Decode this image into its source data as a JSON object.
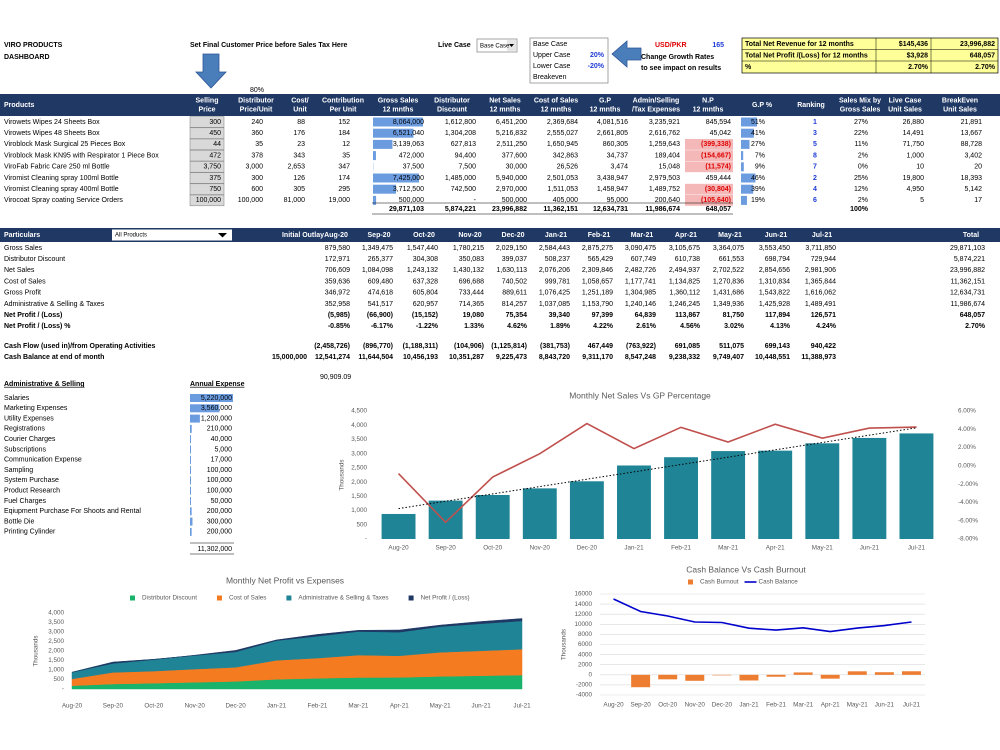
{
  "header": {
    "company": "VIRO PRODUCTS",
    "subtitle": "DASHBOARD",
    "instruction": "Set Final Customer Price before Sales Tax Here",
    "live_case_label": "Live Case",
    "live_case": "Base Case",
    "scenarios": [
      {
        "name": "Base Case"
      },
      {
        "name": "Upper Case",
        "rate": "20%"
      },
      {
        "name": "Lower Case",
        "rate": "-20%"
      },
      {
        "name": "Breakeven"
      }
    ],
    "currency_label": "USD/PKR",
    "currency_rate": 165,
    "growth_note": [
      "Change Growth Rates",
      "to see impact on results"
    ],
    "distributor_margin": "80%"
  },
  "summary": {
    "rows": [
      [
        "Total Net Revenue for 12 months",
        "$145,436",
        "23,996,882"
      ],
      [
        "Total Net Profit /(Loss) for 12 months",
        "$3,928",
        "648,057"
      ],
      [
        "%",
        "2.70%",
        "2.70%"
      ]
    ]
  },
  "products": {
    "columns": [
      [
        "Products"
      ],
      [
        "Selling",
        "Price"
      ],
      [
        "Distributor",
        "Price/Unit"
      ],
      [
        "Cost/",
        "Unit"
      ],
      [
        "Contribution",
        "Per Unit"
      ],
      [
        "Gross Sales",
        "12 mnths"
      ],
      [
        "Distributor",
        "Discount"
      ],
      [
        "Net Sales",
        "12 mnths"
      ],
      [
        "Cost of Sales",
        "12 mnths"
      ],
      [
        "G.P",
        "12 mnths"
      ],
      [
        "Admin/Selling",
        "/Tax Expenses"
      ],
      [
        "N.P",
        "12 mnths"
      ],
      [
        "G.P %"
      ],
      [
        "Ranking"
      ],
      [
        "Sales Mix by",
        "Gross Sales"
      ],
      [
        "Live Case",
        "Unit Sales"
      ],
      [
        "BreakEven",
        "Unit Sales"
      ]
    ],
    "rows": [
      [
        "Virowets Wipes 24 Sheets Box",
        "300",
        "240",
        "88",
        "152",
        "8,064,000",
        "1,612,800",
        "6,451,200",
        "2,369,684",
        "4,081,516",
        "3,235,921",
        "845,594",
        "51%",
        "1",
        "27%",
        "26,880",
        "21,891"
      ],
      [
        "Virowets Wipes 48 Sheets Box",
        "450",
        "360",
        "176",
        "184",
        "6,521,040",
        "1,304,208",
        "5,216,832",
        "2,555,027",
        "2,661,805",
        "2,616,762",
        "45,042",
        "41%",
        "3",
        "22%",
        "14,491",
        "13,667"
      ],
      [
        "Viroblock Mask Surgical 25 Pieces Box",
        "44",
        "35",
        "23",
        "12",
        "3,139,063",
        "627,813",
        "2,511,250",
        "1,650,945",
        "860,305",
        "1,259,643",
        "(399,338)",
        "27%",
        "5",
        "11%",
        "71,750",
        "88,728"
      ],
      [
        "Viroblock Mask KN95 with Respirator 1 Piece Box",
        "472",
        "378",
        "343",
        "35",
        "472,000",
        "94,400",
        "377,600",
        "342,863",
        "34,737",
        "189,404",
        "(154,667)",
        "7%",
        "8",
        "2%",
        "1,000",
        "3,402"
      ],
      [
        "ViroFab Fabric Care 250 ml Bottle",
        "3,750",
        "3,000",
        "2,653",
        "347",
        "37,500",
        "7,500",
        "30,000",
        "26,526",
        "3,474",
        "15,048",
        "(11,574)",
        "9%",
        "7",
        "0%",
        "10",
        "20"
      ],
      [
        "Viromist Cleaning spray 100ml Bottle",
        "375",
        "300",
        "126",
        "174",
        "7,425,000",
        "1,485,000",
        "5,940,000",
        "2,501,053",
        "3,438,947",
        "2,979,503",
        "459,444",
        "46%",
        "2",
        "25%",
        "19,800",
        "18,393"
      ],
      [
        "Viromist Cleaning spray 400ml Bottle",
        "750",
        "600",
        "305",
        "295",
        "3,712,500",
        "742,500",
        "2,970,000",
        "1,511,053",
        "1,458,947",
        "1,489,752",
        "(30,804)",
        "39%",
        "4",
        "12%",
        "4,950",
        "5,142"
      ],
      [
        "Virocoat Spray coating Service Orders",
        "100,000",
        "100,000",
        "81,000",
        "19,000",
        "500,000",
        "-",
        "500,000",
        "405,000",
        "95,000",
        "200,640",
        "(105,640)",
        "19%",
        "6",
        "2%",
        "5",
        "17"
      ]
    ],
    "totals": [
      null,
      null,
      null,
      null,
      null,
      "29,871,103",
      "5,874,221",
      "23,996,882",
      "11,362,151",
      "12,634,731",
      "11,986,674",
      "648,057",
      null,
      null,
      "100%",
      null,
      null
    ]
  },
  "monthly": {
    "title": "Particulars",
    "filter": "All Products",
    "columns": [
      "Initial Outlay",
      "Aug-20",
      "Sep-20",
      "Oct-20",
      "Nov-20",
      "Dec-20",
      "Jan-21",
      "Feb-21",
      "Mar-21",
      "Apr-21",
      "May-21",
      "Jun-21",
      "Jul-21",
      "Total"
    ],
    "rows": [
      {
        "label": "Gross Sales",
        "cells": [
          null,
          "879,580",
          "1,349,475",
          "1,547,440",
          "1,780,215",
          "2,029,150",
          "2,584,443",
          "2,875,275",
          "3,090,475",
          "3,105,675",
          "3,364,075",
          "3,553,450",
          "3,711,850",
          "29,871,103"
        ]
      },
      {
        "label": "Distributor Discount",
        "cells": [
          null,
          "172,971",
          "265,377",
          "304,308",
          "350,083",
          "399,037",
          "508,237",
          "565,429",
          "607,749",
          "610,738",
          "661,553",
          "698,794",
          "729,944",
          "5,874,221"
        ]
      },
      {
        "label": "Net Sales",
        "cells": [
          null,
          "706,609",
          "1,084,098",
          "1,243,132",
          "1,430,132",
          "1,630,113",
          "2,076,206",
          "2,309,846",
          "2,482,726",
          "2,494,937",
          "2,702,522",
          "2,854,656",
          "2,981,906",
          "23,996,882"
        ]
      },
      {
        "label": "Cost of Sales",
        "cells": [
          null,
          "359,636",
          "609,480",
          "637,328",
          "696,688",
          "740,502",
          "999,781",
          "1,058,657",
          "1,177,741",
          "1,134,825",
          "1,270,836",
          "1,310,834",
          "1,365,844",
          "11,362,151"
        ]
      },
      {
        "label": "Gross Profit",
        "cells": [
          null,
          "346,972",
          "474,618",
          "605,804",
          "733,444",
          "889,611",
          "1,076,425",
          "1,251,189",
          "1,304,985",
          "1,360,112",
          "1,431,686",
          "1,543,822",
          "1,616,062",
          "12,634,731"
        ]
      },
      {
        "label": "Administrative & Selling & Taxes",
        "cells": [
          null,
          "352,958",
          "541,517",
          "620,957",
          "714,365",
          "814,257",
          "1,037,085",
          "1,153,790",
          "1,240,146",
          "1,246,245",
          "1,349,936",
          "1,425,928",
          "1,489,491",
          "11,986,674"
        ]
      },
      {
        "label": "Net Profit / (Loss)",
        "cells": [
          null,
          "(5,985)",
          "(66,900)",
          "(15,152)",
          "19,080",
          "75,354",
          "39,340",
          "97,399",
          "64,839",
          "113,867",
          "81,750",
          "117,894",
          "126,571",
          "648,057"
        ]
      },
      {
        "label": "Net Profit / (Loss) %",
        "cells": [
          null,
          "-0.85%",
          "-6.17%",
          "-1.22%",
          "1.33%",
          "4.62%",
          "1.89%",
          "4.22%",
          "2.61%",
          "4.56%",
          "3.02%",
          "4.13%",
          "4.24%",
          "2.70%"
        ]
      },
      {
        "label": "Cash Flow (used in)/from Operating Activities",
        "cells": [
          null,
          "(2,458,726)",
          "(896,770)",
          "(1,188,311)",
          "(104,906)",
          "(1,125,814)",
          "(381,753)",
          "467,449",
          "(763,922)",
          "691,085",
          "511,075",
          "699,143",
          "940,422",
          null
        ]
      },
      {
        "label": "Cash Balance at end of month",
        "cells": [
          "15,000,000",
          "12,541,274",
          "11,644,504",
          "10,456,193",
          "10,351,287",
          "9,225,473",
          "8,843,720",
          "9,311,170",
          "8,547,248",
          "9,238,332",
          "9,749,407",
          "10,448,551",
          "11,388,973",
          null
        ]
      }
    ]
  },
  "note": "90,909.09",
  "expenses": {
    "title": "Administrative & Selling",
    "value_header": "Annual Expense",
    "rows": [
      [
        "Salaries",
        "5,220,000"
      ],
      [
        "Marketing Expenses",
        "3,560,000"
      ],
      [
        "Utility Expenses",
        "1,200,000"
      ],
      [
        "Registrations",
        "210,000"
      ],
      [
        "Courier Charges",
        "40,000"
      ],
      [
        "Subscriptions",
        "5,000"
      ],
      [
        "Communication Expense",
        "17,000"
      ],
      [
        "Sampling",
        "100,000"
      ],
      [
        "System Purchase",
        "100,000"
      ],
      [
        "Product Research",
        "100,000"
      ],
      [
        "Fuel Charges",
        "50,000"
      ],
      [
        "Eqiupment Purchase For Shoots and Rental",
        "200,000"
      ],
      [
        "Bottle Die",
        "300,000"
      ],
      [
        "Printing Cylinder",
        "200,000"
      ]
    ],
    "total": "11,302,000"
  },
  "chart_data": [
    {
      "type": "bar",
      "title": "Monthly Net Sales Vs GP Percentage",
      "ylabel": "Thousands",
      "categories": [
        "Aug-20",
        "Sep-20",
        "Oct-20",
        "Nov-20",
        "Dec-20",
        "Jan-21",
        "Feb-21",
        "Mar-21",
        "Apr-21",
        "May-21",
        "Jun-21",
        "Jul-21"
      ],
      "series": [
        {
          "color": "#1f8596",
          "values": [
            879.58,
            1349.475,
            1547.44,
            1780.215,
            2029.15,
            2584.443,
            2875.275,
            3090.475,
            3105.675,
            3364.075,
            3553.45,
            3711.85
          ]
        },
        {
          "type": "line",
          "axis": "y2",
          "color": "#c0504d",
          "values": [
            -0.85,
            -6.17,
            -1.22,
            1.33,
            4.62,
            1.89,
            4.22,
            2.61,
            4.56,
            3.02,
            4.13,
            4.24
          ]
        }
      ],
      "ylim": [
        0,
        4500
      ],
      "yticks": [
        {
          "value": 0,
          "label": "-"
        },
        500,
        {
          "value": 1000,
          "label": "1,000"
        },
        {
          "value": 1500,
          "label": "1,500"
        },
        {
          "value": 2000,
          "label": "2,000"
        },
        {
          "value": 2500,
          "label": "2,500"
        },
        {
          "value": 3000,
          "label": "3,000"
        },
        {
          "value": 3500,
          "label": "3,500"
        },
        {
          "value": 4000,
          "label": "4,000"
        },
        {
          "value": 4500,
          "label": "4,500"
        }
      ],
      "y2lim": [
        -8,
        6
      ],
      "y2ticks": [
        {
          "value": -8,
          "label": "-8.00%"
        },
        {
          "value": -6,
          "label": "-6.00%"
        },
        {
          "value": -4,
          "label": "-4.00%"
        },
        {
          "value": -2,
          "label": "-2.00%"
        },
        {
          "value": 0,
          "label": "0.00%"
        },
        {
          "value": 2,
          "label": "2.00%"
        },
        {
          "value": 4,
          "label": "4.00%"
        },
        {
          "value": 6,
          "label": "6.00%"
        }
      ],
      "trendline": true,
      "grid": false
    },
    {
      "type": "area",
      "stacked": true,
      "title": "Monthly Net Profit vs Expenses",
      "ylabel": "Thousands",
      "legend": "top",
      "categories": [
        "Aug-20",
        "Sep-20",
        "Oct-20",
        "Nov-20",
        "Dec-20",
        "Jan-21",
        "Feb-21",
        "Mar-21",
        "Apr-21",
        "May-21",
        "Jun-21",
        "Jul-21"
      ],
      "series": [
        {
          "name": "Distributor Discount",
          "color": "#19b36b",
          "values": [
            172.971,
            265.377,
            304.308,
            350.083,
            399.037,
            508.237,
            565.429,
            607.749,
            610.738,
            661.553,
            698.794,
            729.944
          ]
        },
        {
          "name": "Cost of Sales",
          "color": "#f47b20",
          "values": [
            359.636,
            609.48,
            637.328,
            696.688,
            740.502,
            999.781,
            1058.657,
            1177.741,
            1134.825,
            1270.836,
            1310.834,
            1365.844
          ]
        },
        {
          "name": "Administrative & Selling & Taxes",
          "color": "#1f8596",
          "values": [
            352.958,
            541.517,
            620.957,
            714.365,
            814.257,
            1037.085,
            1153.79,
            1240.146,
            1246.245,
            1349.936,
            1425.928,
            1489.491
          ]
        },
        {
          "name": "Net Profit / (Loss)",
          "color": "#1f3864",
          "values": [
            -5.985,
            -66.9,
            -15.152,
            19.08,
            75.354,
            39.34,
            97.399,
            64.839,
            113.867,
            81.75,
            117.894,
            126.571
          ]
        }
      ],
      "ylim": [
        0,
        4000
      ],
      "yticks": [
        {
          "value": 0,
          "label": "-"
        },
        500,
        {
          "value": 1000,
          "label": "1,000"
        },
        {
          "value": 1500,
          "label": "1,500"
        },
        {
          "value": 2000,
          "label": "2,000"
        },
        {
          "value": 2500,
          "label": "2,500"
        },
        {
          "value": 3000,
          "label": "3,000"
        },
        {
          "value": 3500,
          "label": "3,500"
        },
        {
          "value": 4000,
          "label": "4,000"
        }
      ],
      "grid": false
    },
    {
      "type": "bar",
      "title": "Cash Balance Vs Cash Burnout",
      "ylabel": "Thousands",
      "legend": "top",
      "categories": [
        "Aug-20",
        "Sep-20",
        "Oct-20",
        "Nov-20",
        "Dec-20",
        "Jan-21",
        "Feb-21",
        "Mar-21",
        "Apr-21",
        "May-21",
        "Jun-21",
        "Jul-21"
      ],
      "series": [
        {
          "name": "Cash Burnout",
          "color": "#ed7d31",
          "values": [
            null,
            -2458.726,
            -896.77,
            -1188.311,
            -104.906,
            -1125.814,
            -381.753,
            467.449,
            -763.922,
            691.085,
            511.075,
            699.143
          ]
        },
        {
          "name": "Cash Balance",
          "type": "line",
          "color": "#0000cc",
          "values": [
            15000,
            12541.274,
            11644.504,
            10456.193,
            10351.287,
            9225.473,
            8843.72,
            9311.17,
            8547.248,
            9238.332,
            9749.407,
            10448.551
          ]
        }
      ],
      "ylim": [
        -4000,
        16000
      ],
      "yticks": [
        -4000,
        -2000,
        0,
        2000,
        4000,
        6000,
        8000,
        10000,
        12000,
        14000,
        16000
      ],
      "grid": true
    }
  ]
}
